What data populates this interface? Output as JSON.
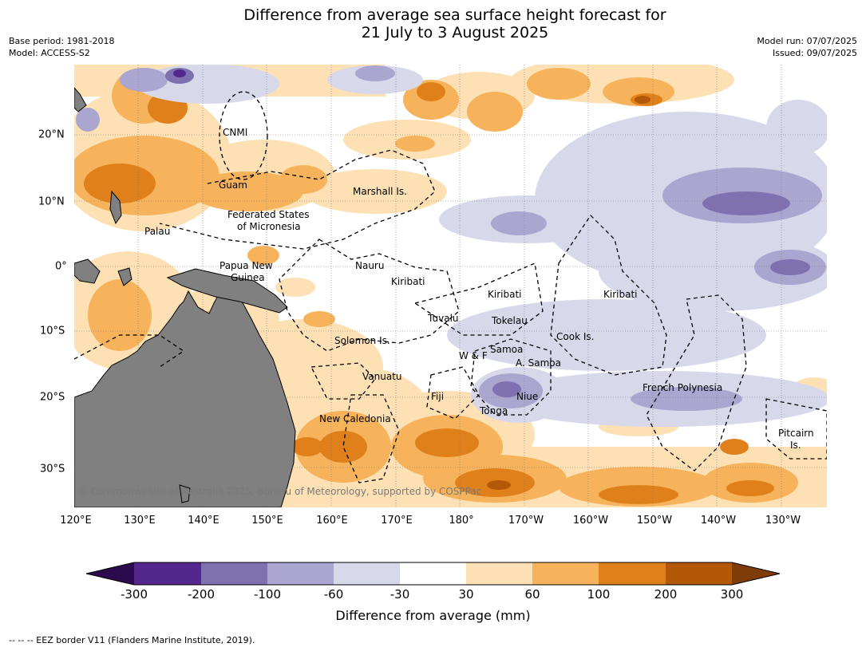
{
  "title": [
    "Difference from average sea surface height forecast for",
    "21 July to 3 August 2025"
  ],
  "base_period": "Base period: 1981-2018",
  "model": "Model: ACCESS-S2",
  "model_run": "Model run: 07/07/2025",
  "issued": "Issued: 09/07/2025",
  "lon_labels": [
    "120°E",
    "130°E",
    "140°E",
    "150°E",
    "160°E",
    "170°E",
    "180°",
    "170°W",
    "160°W",
    "150°W",
    "140°W",
    "130°W"
  ],
  "lat_labels": [
    "20°N",
    "10°N",
    "0°",
    "10°S",
    "20°S",
    "30°S"
  ],
  "places": [
    "CNMI",
    "Guam",
    "Marshall Is.",
    "Federated States",
    "of Micronesia",
    "Palau",
    "Nauru",
    "Papua New",
    "Guinea",
    "Kiribati",
    "Kiribati",
    "Kiribati",
    "Tuvalu",
    "Tokelau",
    "Solomon Is.",
    "Cook Is.",
    "Samoa",
    "W & F",
    "A. Samoa",
    "Vanuatu",
    "Fiji",
    "Niue",
    "French Polynesia",
    "Tonga",
    "New Caledonia",
    "Pitcairn",
    "Is."
  ],
  "copyright": "© Commonwealth of Australia 2025, Bureau of Meteorology, supported by COSPPac",
  "colorbar": {
    "labels": [
      "-300",
      "-200",
      "-100",
      "-60",
      "-30",
      "30",
      "60",
      "100",
      "200",
      "300"
    ],
    "colors": [
      "#2d0a4e",
      "#54278f",
      "#7f70b0",
      "#aba6d0",
      "#d8d8eb",
      "#ffffff",
      "#fde0b4",
      "#f6b35c",
      "#e0801a",
      "#b35806",
      "#7f3b08"
    ],
    "title": "Difference from average (mm)"
  },
  "eez_note": "--  --  -- EEZ border V11 (Flanders Marine Institute, 2019).",
  "land_color": "#808080"
}
